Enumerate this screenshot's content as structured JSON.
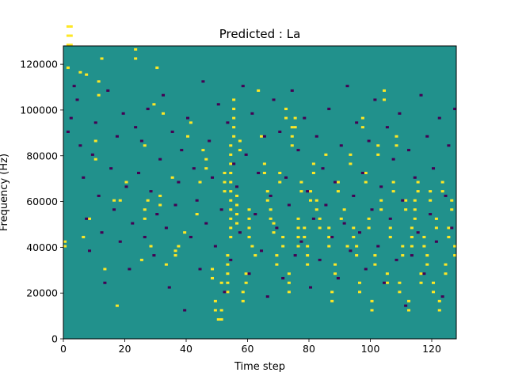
{
  "chart_data": {
    "type": "heatmap",
    "title": "Predicted : La",
    "xlabel": "Time step",
    "ylabel": "Frequency (Hz)",
    "xlim": [
      0,
      128
    ],
    "ylim": [
      0,
      128000
    ],
    "x_ticks": [
      0,
      20,
      40,
      60,
      80,
      100,
      120
    ],
    "y_ticks": [
      0,
      20000,
      40000,
      60000,
      80000,
      100000,
      120000
    ],
    "grid": false,
    "colormap": "viridis",
    "value_colors": {
      "low": "#440154",
      "mid": "#21918c",
      "high": "#fde725"
    },
    "background_value": "mid",
    "time_steps": 128,
    "frequency_bins": 128,
    "high_value_cells": [
      [
        0,
        40
      ],
      [
        0,
        42
      ],
      [
        1,
        118
      ],
      [
        1,
        128
      ],
      [
        1,
        132
      ],
      [
        1,
        136
      ],
      [
        2,
        128
      ],
      [
        2,
        132
      ],
      [
        2,
        136
      ],
      [
        5,
        116
      ],
      [
        6,
        44
      ],
      [
        7,
        115
      ],
      [
        8,
        52
      ],
      [
        10,
        78
      ],
      [
        10,
        86
      ],
      [
        11,
        106
      ],
      [
        11,
        112
      ],
      [
        12,
        122
      ],
      [
        13,
        30
      ],
      [
        16,
        60
      ],
      [
        17,
        14
      ],
      [
        18,
        60
      ],
      [
        20,
        68
      ],
      [
        23,
        126
      ],
      [
        23,
        122
      ],
      [
        25,
        34
      ],
      [
        26,
        52
      ],
      [
        26,
        56
      ],
      [
        26,
        84
      ],
      [
        27,
        60
      ],
      [
        28,
        40
      ],
      [
        29,
        102
      ],
      [
        30,
        118
      ],
      [
        31,
        58
      ],
      [
        31,
        62
      ],
      [
        32,
        98
      ],
      [
        33,
        32
      ],
      [
        35,
        70
      ],
      [
        36,
        36
      ],
      [
        36,
        38
      ],
      [
        37,
        40
      ],
      [
        39,
        46
      ],
      [
        40,
        88
      ],
      [
        41,
        94
      ],
      [
        43,
        54
      ],
      [
        44,
        68
      ],
      [
        45,
        82
      ],
      [
        46,
        74
      ],
      [
        46,
        78
      ],
      [
        48,
        26
      ],
      [
        48,
        30
      ],
      [
        49,
        12
      ],
      [
        49,
        16
      ],
      [
        50,
        8
      ],
      [
        51,
        8
      ],
      [
        51,
        12
      ],
      [
        51,
        24
      ],
      [
        52,
        64
      ],
      [
        52,
        68
      ],
      [
        52,
        72
      ],
      [
        53,
        20
      ],
      [
        53,
        24
      ],
      [
        53,
        28
      ],
      [
        53,
        32
      ],
      [
        53,
        36
      ],
      [
        54,
        44
      ],
      [
        54,
        48
      ],
      [
        54,
        52
      ],
      [
        54,
        56
      ],
      [
        54,
        60
      ],
      [
        54,
        64
      ],
      [
        54,
        68
      ],
      [
        54,
        72
      ],
      [
        54,
        76
      ],
      [
        54,
        80
      ],
      [
        54,
        84
      ],
      [
        55,
        88
      ],
      [
        55,
        92
      ],
      [
        55,
        96
      ],
      [
        55,
        100
      ],
      [
        55,
        104
      ],
      [
        56,
        50
      ],
      [
        56,
        54
      ],
      [
        56,
        58
      ],
      [
        56,
        62
      ],
      [
        57,
        82
      ],
      [
        57,
        86
      ],
      [
        58,
        16
      ],
      [
        58,
        20
      ],
      [
        59,
        24
      ],
      [
        59,
        28
      ],
      [
        60,
        44
      ],
      [
        60,
        48
      ],
      [
        60,
        52
      ],
      [
        60,
        56
      ],
      [
        61,
        40
      ],
      [
        62,
        36
      ],
      [
        63,
        108
      ],
      [
        64,
        88
      ],
      [
        65,
        72
      ],
      [
        65,
        76
      ],
      [
        66,
        60
      ],
      [
        66,
        64
      ],
      [
        67,
        52
      ],
      [
        67,
        56
      ],
      [
        68,
        46
      ],
      [
        68,
        50
      ],
      [
        69,
        32
      ],
      [
        69,
        36
      ],
      [
        70,
        68
      ],
      [
        70,
        72
      ],
      [
        71,
        40
      ],
      [
        71,
        44
      ],
      [
        72,
        96
      ],
      [
        72,
        100
      ],
      [
        73,
        20
      ],
      [
        73,
        24
      ],
      [
        73,
        28
      ],
      [
        74,
        84
      ],
      [
        74,
        88
      ],
      [
        74,
        92
      ],
      [
        75,
        92
      ],
      [
        75,
        96
      ],
      [
        76,
        40
      ],
      [
        76,
        44
      ],
      [
        76,
        48
      ],
      [
        76,
        52
      ],
      [
        77,
        64
      ],
      [
        77,
        68
      ],
      [
        78,
        44
      ],
      [
        78,
        48
      ],
      [
        79,
        32
      ],
      [
        79,
        36
      ],
      [
        79,
        40
      ],
      [
        80,
        60
      ],
      [
        80,
        64
      ],
      [
        81,
        72
      ],
      [
        81,
        76
      ],
      [
        82,
        56
      ],
      [
        82,
        60
      ],
      [
        83,
        48
      ],
      [
        83,
        52
      ],
      [
        85,
        80
      ],
      [
        86,
        40
      ],
      [
        86,
        44
      ],
      [
        86,
        48
      ],
      [
        87,
        16
      ],
      [
        87,
        20
      ],
      [
        88,
        28
      ],
      [
        88,
        32
      ],
      [
        89,
        64
      ],
      [
        89,
        68
      ],
      [
        90,
        52
      ],
      [
        91,
        56
      ],
      [
        92,
        40
      ],
      [
        93,
        76
      ],
      [
        93,
        80
      ],
      [
        94,
        44
      ],
      [
        94,
        48
      ],
      [
        95,
        36
      ],
      [
        95,
        40
      ],
      [
        96,
        20
      ],
      [
        96,
        24
      ],
      [
        97,
        92
      ],
      [
        97,
        96
      ],
      [
        98,
        68
      ],
      [
        98,
        72
      ],
      [
        99,
        48
      ],
      [
        99,
        52
      ],
      [
        100,
        12
      ],
      [
        100,
        16
      ],
      [
        101,
        32
      ],
      [
        101,
        36
      ],
      [
        102,
        80
      ],
      [
        102,
        84
      ],
      [
        103,
        56
      ],
      [
        103,
        60
      ],
      [
        104,
        104
      ],
      [
        104,
        108
      ],
      [
        105,
        24
      ],
      [
        105,
        28
      ],
      [
        106,
        44
      ],
      [
        106,
        48
      ],
      [
        107,
        64
      ],
      [
        107,
        68
      ],
      [
        108,
        84
      ],
      [
        108,
        88
      ],
      [
        109,
        20
      ],
      [
        109,
        24
      ],
      [
        110,
        36
      ],
      [
        110,
        40
      ],
      [
        111,
        56
      ],
      [
        111,
        60
      ],
      [
        112,
        12
      ],
      [
        112,
        16
      ],
      [
        113,
        40
      ],
      [
        113,
        44
      ],
      [
        113,
        48
      ],
      [
        114,
        52
      ],
      [
        114,
        56
      ],
      [
        114,
        60
      ],
      [
        115,
        64
      ],
      [
        115,
        68
      ],
      [
        116,
        24
      ],
      [
        116,
        28
      ],
      [
        117,
        40
      ],
      [
        117,
        44
      ],
      [
        118,
        32
      ],
      [
        118,
        36
      ],
      [
        119,
        60
      ],
      [
        119,
        64
      ],
      [
        120,
        20
      ],
      [
        120,
        24
      ],
      [
        121,
        48
      ],
      [
        121,
        52
      ],
      [
        122,
        12
      ],
      [
        122,
        16
      ],
      [
        123,
        64
      ],
      [
        123,
        68
      ],
      [
        124,
        28
      ],
      [
        124,
        32
      ],
      [
        125,
        44
      ],
      [
        125,
        48
      ],
      [
        126,
        56
      ],
      [
        126,
        60
      ],
      [
        127,
        36
      ],
      [
        127,
        40
      ]
    ],
    "low_value_cells": [
      [
        1,
        90
      ],
      [
        2,
        96
      ],
      [
        3,
        110
      ],
      [
        4,
        104
      ],
      [
        5,
        84
      ],
      [
        6,
        70
      ],
      [
        7,
        52
      ],
      [
        8,
        38
      ],
      [
        9,
        80
      ],
      [
        10,
        94
      ],
      [
        11,
        62
      ],
      [
        12,
        46
      ],
      [
        13,
        24
      ],
      [
        14,
        108
      ],
      [
        15,
        74
      ],
      [
        16,
        56
      ],
      [
        17,
        88
      ],
      [
        18,
        42
      ],
      [
        19,
        98
      ],
      [
        20,
        66
      ],
      [
        21,
        30
      ],
      [
        22,
        50
      ],
      [
        23,
        92
      ],
      [
        24,
        72
      ],
      [
        25,
        86
      ],
      [
        26,
        44
      ],
      [
        27,
        100
      ],
      [
        28,
        64
      ],
      [
        29,
        36
      ],
      [
        30,
        54
      ],
      [
        31,
        78
      ],
      [
        32,
        106
      ],
      [
        33,
        48
      ],
      [
        34,
        22
      ],
      [
        35,
        90
      ],
      [
        36,
        58
      ],
      [
        37,
        68
      ],
      [
        38,
        82
      ],
      [
        39,
        12
      ],
      [
        40,
        96
      ],
      [
        41,
        44
      ],
      [
        42,
        74
      ],
      [
        43,
        60
      ],
      [
        44,
        30
      ],
      [
        45,
        112
      ],
      [
        46,
        50
      ],
      [
        47,
        86
      ],
      [
        48,
        70
      ],
      [
        49,
        40
      ],
      [
        50,
        102
      ],
      [
        51,
        56
      ],
      [
        52,
        20
      ],
      [
        53,
        94
      ],
      [
        54,
        34
      ],
      [
        55,
        76
      ],
      [
        56,
        66
      ],
      [
        57,
        46
      ],
      [
        58,
        110
      ],
      [
        59,
        80
      ],
      [
        60,
        28
      ],
      [
        61,
        98
      ],
      [
        62,
        54
      ],
      [
        63,
        72
      ],
      [
        64,
        38
      ],
      [
        65,
        88
      ],
      [
        66,
        18
      ],
      [
        67,
        62
      ],
      [
        68,
        104
      ],
      [
        69,
        48
      ],
      [
        70,
        90
      ],
      [
        71,
        26
      ],
      [
        72,
        70
      ],
      [
        73,
        58
      ],
      [
        74,
        108
      ],
      [
        75,
        36
      ],
      [
        76,
        82
      ],
      [
        77,
        42
      ],
      [
        78,
        96
      ],
      [
        79,
        64
      ],
      [
        80,
        22
      ],
      [
        81,
        52
      ],
      [
        82,
        88
      ],
      [
        83,
        34
      ],
      [
        84,
        74
      ],
      [
        85,
        58
      ],
      [
        86,
        100
      ],
      [
        87,
        44
      ],
      [
        88,
        68
      ],
      [
        89,
        26
      ],
      [
        90,
        84
      ],
      [
        91,
        50
      ],
      [
        92,
        110
      ],
      [
        93,
        38
      ],
      [
        94,
        62
      ],
      [
        95,
        94
      ],
      [
        96,
        46
      ],
      [
        97,
        72
      ],
      [
        98,
        30
      ],
      [
        99,
        86
      ],
      [
        100,
        56
      ],
      [
        101,
        104
      ],
      [
        102,
        40
      ],
      [
        103,
        66
      ],
      [
        104,
        24
      ],
      [
        105,
        92
      ],
      [
        106,
        52
      ],
      [
        107,
        78
      ],
      [
        108,
        34
      ],
      [
        109,
        98
      ],
      [
        110,
        60
      ],
      [
        111,
        14
      ],
      [
        112,
        82
      ],
      [
        113,
        36
      ],
      [
        114,
        70
      ],
      [
        115,
        46
      ],
      [
        116,
        106
      ],
      [
        117,
        28
      ],
      [
        118,
        88
      ],
      [
        119,
        54
      ],
      [
        120,
        74
      ],
      [
        121,
        42
      ],
      [
        122,
        96
      ],
      [
        123,
        18
      ],
      [
        124,
        62
      ],
      [
        125,
        84
      ],
      [
        126,
        48
      ],
      [
        127,
        100
      ]
    ]
  }
}
